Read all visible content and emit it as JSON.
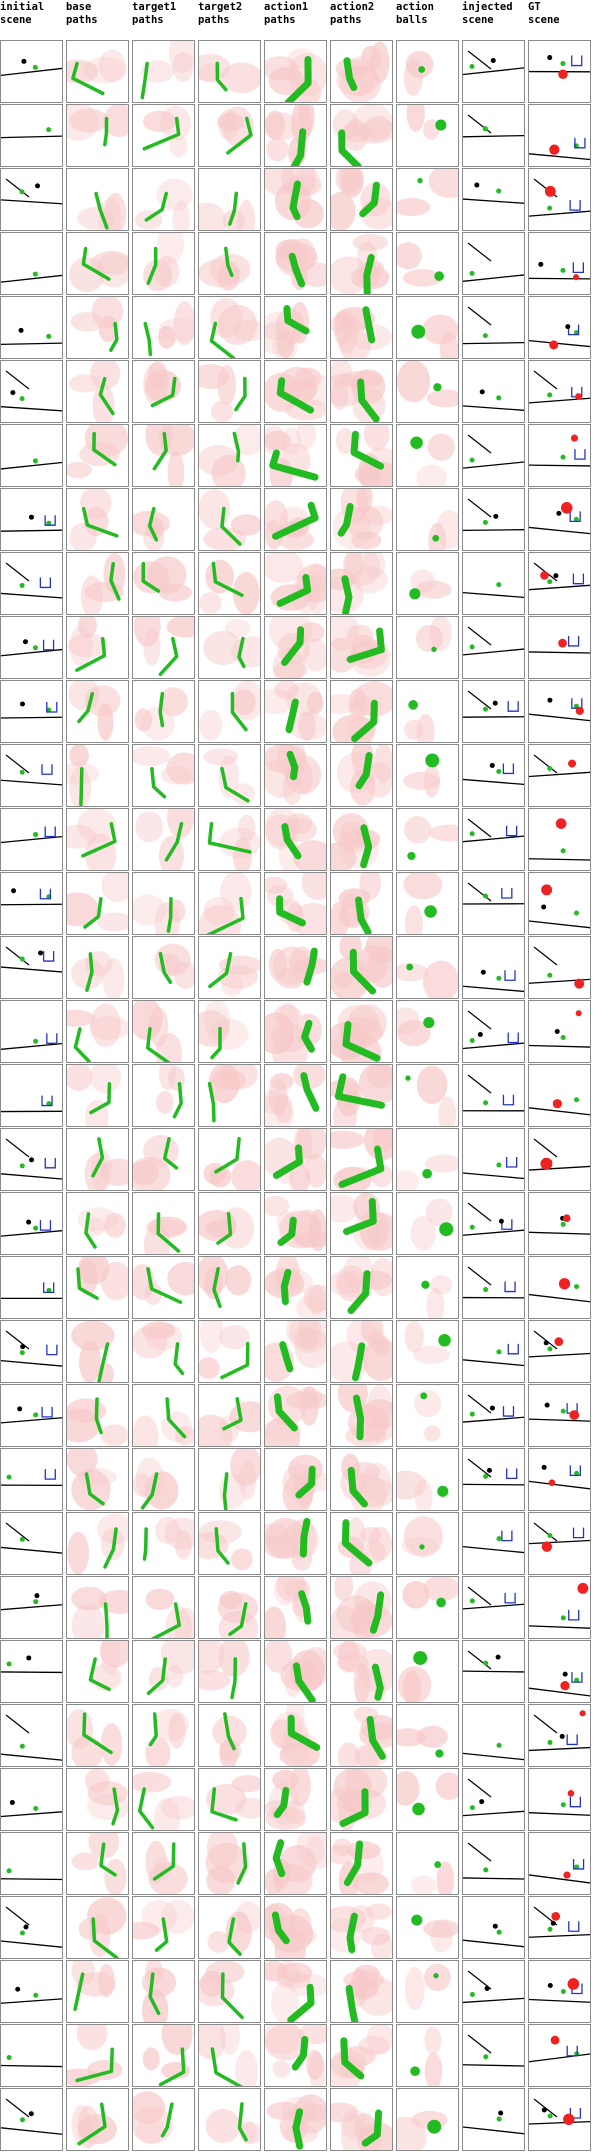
{
  "columns": [
    "initial\nscene",
    "base\npaths",
    "target1\npaths",
    "target2\npaths",
    "action1\npaths",
    "action2\npaths",
    "action\nballs",
    "injected\nscene",
    "GT\nscene"
  ],
  "row_count": 33,
  "colors": {
    "path_green": "#22bb22",
    "heat_red": "#f7c9c9",
    "ball_red": "#ee2222",
    "goal_blue": "#2233cc",
    "tile_border": "#8a8a8a"
  }
}
